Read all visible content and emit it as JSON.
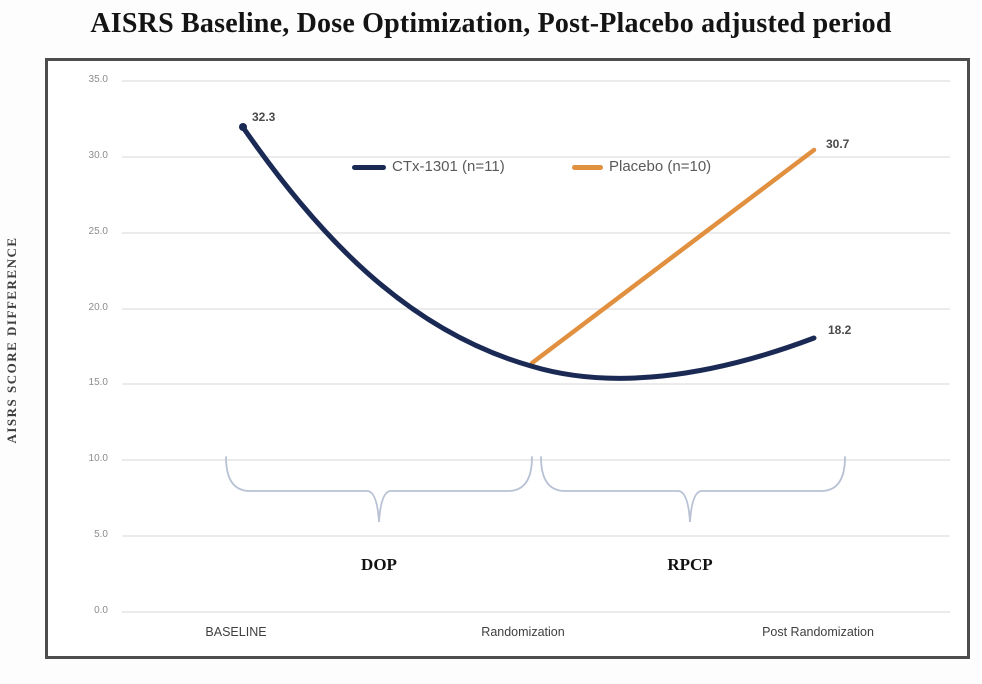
{
  "title": "AISRS Baseline, Dose Optimization, Post-Placebo adjusted period",
  "y_axis_title": "AISRS SCORE DIFFERENCE",
  "legend": {
    "ctx_label": "CTx-1301 (n=11)",
    "placebo_label": "Placebo (n=10)"
  },
  "data_labels": {
    "ctx_baseline": "32.3",
    "placebo_end": "30.7",
    "ctx_end": "18.2"
  },
  "phase_labels": {
    "dop": "DOP",
    "rpcp": "RPCP"
  },
  "x_labels": [
    "BASELINE",
    "Randomization",
    "Post Randomization"
  ],
  "y_ticks": [
    "35.0",
    "30.0",
    "25.0",
    "20.0",
    "15.0",
    "10.0",
    "5.0",
    "0.0"
  ],
  "colors": {
    "ctx_line": "#1b2a55",
    "placebo_line": "#e0903f",
    "gridline": "#ebebeb",
    "brace": "#b8c2d4",
    "frame_border": "#4d4d4d"
  },
  "chart_data": {
    "type": "line",
    "title": "AISRS Baseline, Dose Optimization, Post-Placebo adjusted period",
    "ylabel": "AISRS SCORE DIFFERENCE",
    "x": [
      "BASELINE",
      "Randomization",
      "Post Randomization"
    ],
    "series": [
      {
        "name": "CTx-1301 (n=11)",
        "color": "#1b2a55",
        "values": [
          32.3,
          16.3,
          18.2
        ]
      },
      {
        "name": "Placebo (n=10)",
        "color": "#e0903f",
        "values": [
          null,
          16.3,
          30.7
        ]
      }
    ],
    "ylim": [
      0,
      35
    ],
    "yticks": [
      35.0,
      30.0,
      25.0,
      20.0,
      15.0,
      10.0,
      5.0,
      0.0
    ],
    "grid": true,
    "legend_position": "top-center",
    "annotations": [
      {
        "label": "DOP",
        "span": [
          "BASELINE",
          "Randomization"
        ]
      },
      {
        "label": "RPCP",
        "span": [
          "Randomization",
          "Post Randomization"
        ]
      }
    ]
  }
}
